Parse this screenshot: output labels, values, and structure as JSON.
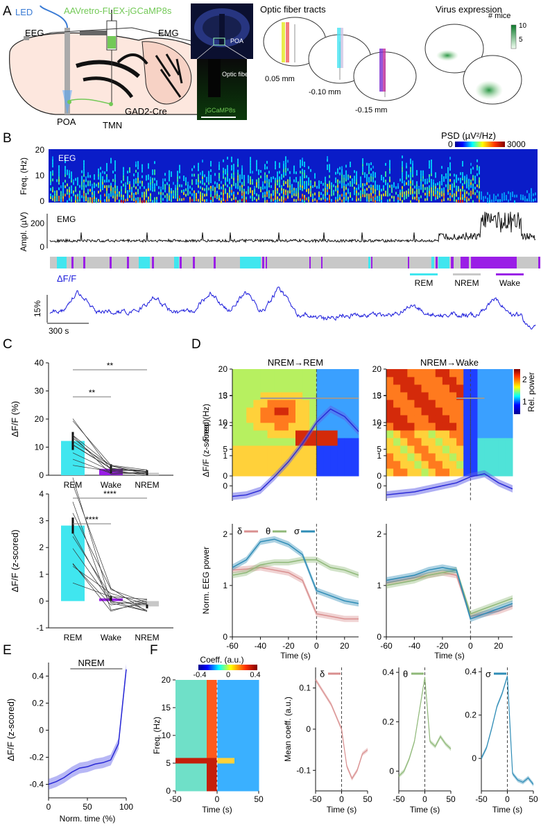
{
  "panels": {
    "a": "A",
    "b": "B",
    "c": "C",
    "d": "D",
    "e": "E",
    "f": "F"
  },
  "colors": {
    "rem": "#40e6ef",
    "nrem": "#c8c8c8",
    "wake": "#9a1ee6",
    "trace": "#1a1adb",
    "delta": "#d98f8f",
    "theta": "#8fb878",
    "sigma": "#2e8cb6",
    "gfp": "#73c957",
    "blueled": "#3a7bd5"
  },
  "panel_a": {
    "led": "LED",
    "virus": "AAVretro-FLEX-jGCaMP8s",
    "eeg": "EEG",
    "emg": "EMG",
    "poa": "POA",
    "tmn": "TMN",
    "gad": "GAD2-Cre",
    "histo_poa": "POA",
    "histo_fiber": "Optic fiber",
    "histo_gcamp": "jGCaMP8s",
    "fiber_title": "Optic fiber tracts",
    "fiber_levels": [
      "0.05 mm",
      "-0.10 mm",
      "-0.15 mm"
    ],
    "virus_title": "Virus expression",
    "mice_label": "# mice",
    "mice_ticks": [
      "10",
      "5"
    ]
  },
  "panel_b": {
    "psd_label": "PSD (µV²/Hz)",
    "psd_min": "0",
    "psd_max": "3000",
    "eeg_label": "EEG",
    "freq_label": "Freq. (Hz)",
    "freq_ticks": [
      "20",
      "10",
      "0"
    ],
    "emg_label": "EMG",
    "ampl_label": "Ampl. (µV)",
    "ampl_ticks": [
      "200",
      "0"
    ],
    "df_label": "ΔF/F",
    "legend": [
      "REM",
      "NREM",
      "Wake"
    ],
    "scale_pct": "15%",
    "scale_time": "300 s"
  },
  "panel_c": {
    "top": {
      "ylabel": "ΔF/F (%)",
      "yticks": [
        "40",
        "30",
        "20",
        "10",
        "0"
      ],
      "categories": [
        "REM",
        "Wake",
        "NREM"
      ],
      "means": [
        12.2,
        2.3,
        0.9
      ],
      "sems": [
        3.2,
        1.6,
        0.9
      ],
      "sig": [
        "**",
        "**"
      ]
    },
    "bottom": {
      "ylabel": "ΔF/F (z-scored)",
      "yticks": [
        "4",
        "3",
        "2",
        "1",
        "0",
        "-1"
      ],
      "categories": [
        "REM",
        "Wake",
        "NREM"
      ],
      "means": [
        2.82,
        0.1,
        -0.2
      ],
      "sems": [
        0.3,
        0.1,
        0.07
      ],
      "sig": [
        "****",
        "****"
      ]
    }
  },
  "panel_d": {
    "titles": [
      "NREM→REM",
      "NREM→Wake"
    ],
    "freq_label": "Freq. (Hz)",
    "freq_ticks": [
      "20",
      "15",
      "10",
      "5",
      "0"
    ],
    "colorbar_label": "Rel. power",
    "colorbar_ticks": [
      "2",
      "1"
    ],
    "df_label": "ΔF/F (z-scored)",
    "df_ticks": [
      "3",
      "2",
      "1",
      "0"
    ],
    "eeg_label": "Norm. EEG power",
    "eeg_ticks": [
      "2",
      "1",
      "0"
    ],
    "bands": [
      "δ",
      "θ",
      "σ"
    ],
    "time_label": "Time (s)",
    "time_ticks": [
      "-60",
      "-40",
      "-20",
      "0",
      "20"
    ]
  },
  "panel_e": {
    "title": "NREM",
    "ylabel": "ΔF/F (z-scored)",
    "xlabel": "Norm. time (%)",
    "yticks": [
      "0.4",
      "0.2",
      "0",
      "-0.2",
      "-0.4"
    ],
    "xticks": [
      "0",
      "50",
      "100"
    ]
  },
  "panel_f": {
    "coeff_label": "Coeff. (a.u.)",
    "coeff_ticks": [
      "-0.4",
      "0",
      "0.4"
    ],
    "freq_label": "Freq. (Hz)",
    "freq_ticks": [
      "20",
      "15",
      "10",
      "5",
      "0"
    ],
    "time_label": "Time (s)",
    "time_ticks": [
      "-50",
      "0",
      "50"
    ],
    "mean_label": "Mean coeff. (a.u.)",
    "delta_ticks": [
      "0.1",
      "0",
      "-0.1"
    ],
    "theta_ticks": [
      "0.4",
      "0.2",
      "0"
    ],
    "sigma_ticks": [
      "0.4",
      "0.2",
      "0"
    ],
    "bands": [
      "δ",
      "θ",
      "σ"
    ]
  },
  "chart_data": [
    {
      "type": "bar",
      "title": "ΔF/F (%)",
      "categories": [
        "REM",
        "Wake",
        "NREM"
      ],
      "values": [
        12.2,
        2.3,
        0.9
      ],
      "ylim": [
        0,
        40
      ],
      "ylabel": "ΔF/F (%)"
    },
    {
      "type": "bar",
      "title": "ΔF/F (z-scored)",
      "categories": [
        "REM",
        "Wake",
        "NREM"
      ],
      "values": [
        2.82,
        0.1,
        -0.2
      ],
      "ylim": [
        -1,
        4
      ],
      "ylabel": "ΔF/F (z-scored)"
    },
    {
      "type": "line",
      "title": "NREM→REM ΔF/F",
      "x": [
        -60,
        -50,
        -40,
        -30,
        -20,
        -10,
        0,
        10,
        20,
        30
      ],
      "values": [
        -0.35,
        -0.3,
        -0.15,
        0.3,
        0.8,
        1.4,
        2.1,
        2.55,
        2.3,
        1.8
      ],
      "ylim": [
        -0.5,
        3
      ],
      "xlabel": "Time (s)"
    },
    {
      "type": "line",
      "title": "NREM→Wake ΔF/F",
      "x": [
        -60,
        -50,
        -40,
        -30,
        -20,
        -10,
        0,
        10,
        20,
        30
      ],
      "values": [
        -0.3,
        -0.25,
        -0.2,
        -0.1,
        0,
        0.1,
        0.3,
        0.4,
        0.1,
        -0.1
      ],
      "ylim": [
        -0.5,
        3
      ],
      "xlabel": "Time (s)"
    },
    {
      "type": "line",
      "title": "NREM ΔF/F",
      "x": [
        0,
        10,
        20,
        30,
        40,
        50,
        60,
        70,
        80,
        90,
        100
      ],
      "values": [
        -0.4,
        -0.38,
        -0.35,
        -0.31,
        -0.28,
        -0.27,
        -0.25,
        -0.24,
        -0.22,
        -0.1,
        0.45
      ],
      "ylim": [
        -0.5,
        0.5
      ],
      "xlabel": "Norm. time (%)"
    }
  ]
}
